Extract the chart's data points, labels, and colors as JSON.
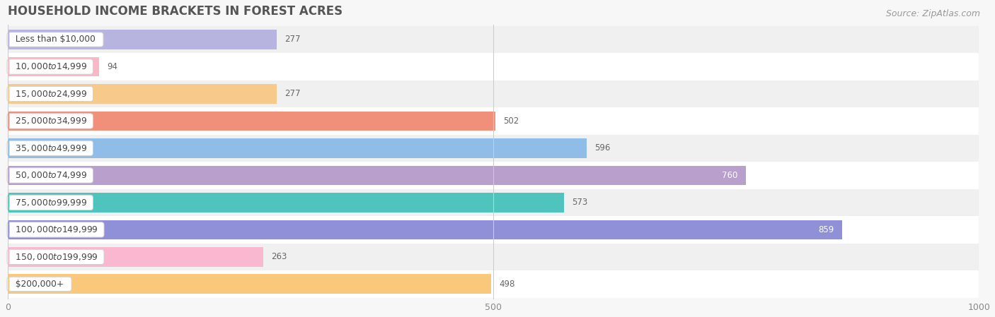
{
  "title": "HOUSEHOLD INCOME BRACKETS IN FOREST ACRES",
  "source": "Source: ZipAtlas.com",
  "categories": [
    "Less than $10,000",
    "$10,000 to $14,999",
    "$15,000 to $24,999",
    "$25,000 to $34,999",
    "$35,000 to $49,999",
    "$50,000 to $74,999",
    "$75,000 to $99,999",
    "$100,000 to $149,999",
    "$150,000 to $199,999",
    "$200,000+"
  ],
  "values": [
    277,
    94,
    277,
    502,
    596,
    760,
    573,
    859,
    263,
    498
  ],
  "bar_colors": [
    "#b8b4e0",
    "#f9b8c8",
    "#f7c98a",
    "#f0907a",
    "#90bce8",
    "#b89fcc",
    "#4ec4bc",
    "#9090d8",
    "#f9b8d0",
    "#f9c87a"
  ],
  "bar_label_colors": [
    "#666666",
    "#666666",
    "#666666",
    "#666666",
    "#666666",
    "#ffffff",
    "#666666",
    "#ffffff",
    "#666666",
    "#666666"
  ],
  "row_bg_colors": [
    "#f0f0f0",
    "#ffffff",
    "#f0f0f0",
    "#ffffff",
    "#f0f0f0",
    "#ffffff",
    "#f0f0f0",
    "#ffffff",
    "#f0f0f0",
    "#ffffff"
  ],
  "xlim": [
    0,
    1000
  ],
  "xticks": [
    0,
    500,
    1000
  ],
  "background_color": "#f7f7f7",
  "title_fontsize": 12,
  "source_fontsize": 9
}
